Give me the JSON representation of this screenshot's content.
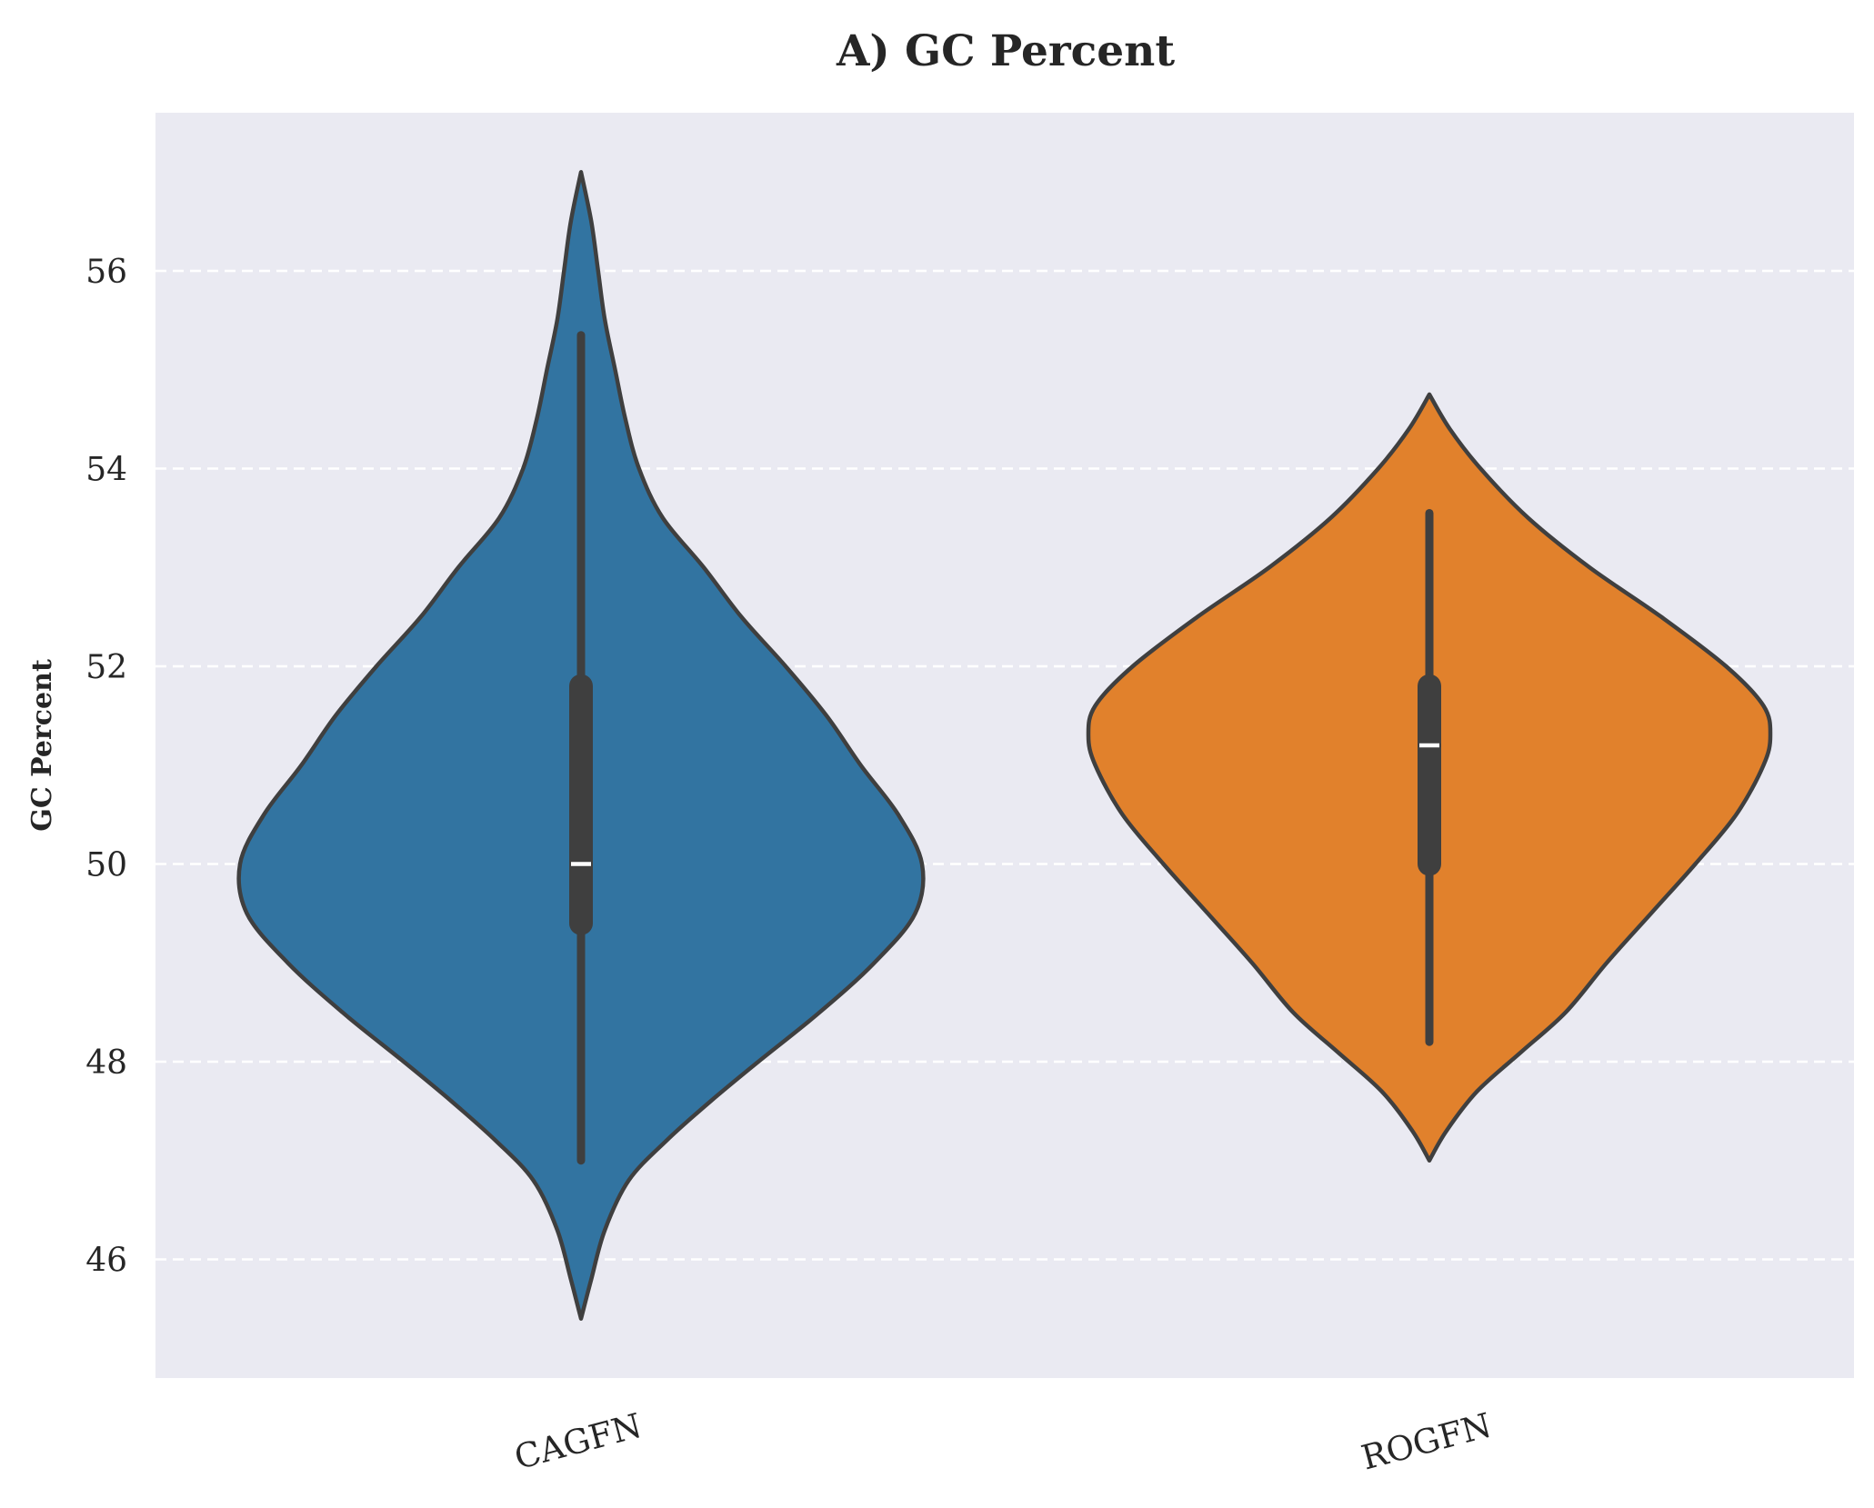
{
  "chart_data": {
    "type": "violin",
    "title": "A) GC Percent",
    "xlabel": "",
    "ylabel": "GC Percent",
    "ylim": [
      44.8,
      57.6
    ],
    "yticks": [
      46,
      48,
      50,
      52,
      54,
      56
    ],
    "grid": "horizontal dashed",
    "background": "#eaeaf2",
    "categories": [
      "CAGFN",
      "ROGFN"
    ],
    "series": [
      {
        "category": "CAGFN",
        "color": "#3274a1",
        "min": 47.0,
        "q1": 49.4,
        "median": 50.0,
        "q3": 51.8,
        "max": 55.35,
        "kde_extent": [
          45.4,
          57.0
        ],
        "density": [
          [
            45.4,
            0.0
          ],
          [
            45.8,
            0.03
          ],
          [
            46.3,
            0.07
          ],
          [
            46.8,
            0.14
          ],
          [
            47.2,
            0.25
          ],
          [
            47.6,
            0.38
          ],
          [
            48.0,
            0.52
          ],
          [
            48.5,
            0.7
          ],
          [
            49.0,
            0.86
          ],
          [
            49.5,
            0.98
          ],
          [
            50.0,
            1.0
          ],
          [
            50.5,
            0.93
          ],
          [
            51.0,
            0.82
          ],
          [
            51.5,
            0.72
          ],
          [
            52.0,
            0.6
          ],
          [
            52.5,
            0.47
          ],
          [
            53.0,
            0.36
          ],
          [
            53.5,
            0.24
          ],
          [
            54.0,
            0.17
          ],
          [
            54.5,
            0.13
          ],
          [
            55.0,
            0.1
          ],
          [
            55.5,
            0.07
          ],
          [
            56.0,
            0.05
          ],
          [
            56.5,
            0.03
          ],
          [
            57.0,
            0.0
          ]
        ]
      },
      {
        "category": "ROGFN",
        "color": "#e1812c",
        "min": 48.2,
        "q1": 50.0,
        "median": 51.2,
        "q3": 51.8,
        "max": 53.55,
        "kde_extent": [
          47.0,
          54.75
        ],
        "density": [
          [
            47.0,
            0.0
          ],
          [
            47.3,
            0.05
          ],
          [
            47.7,
            0.14
          ],
          [
            48.1,
            0.27
          ],
          [
            48.5,
            0.4
          ],
          [
            49.0,
            0.52
          ],
          [
            49.5,
            0.65
          ],
          [
            50.0,
            0.78
          ],
          [
            50.5,
            0.9
          ],
          [
            51.0,
            0.98
          ],
          [
            51.3,
            1.0
          ],
          [
            51.6,
            0.98
          ],
          [
            52.0,
            0.87
          ],
          [
            52.5,
            0.68
          ],
          [
            53.0,
            0.47
          ],
          [
            53.5,
            0.29
          ],
          [
            54.0,
            0.15
          ],
          [
            54.4,
            0.06
          ],
          [
            54.75,
            0.0
          ]
        ]
      }
    ]
  }
}
